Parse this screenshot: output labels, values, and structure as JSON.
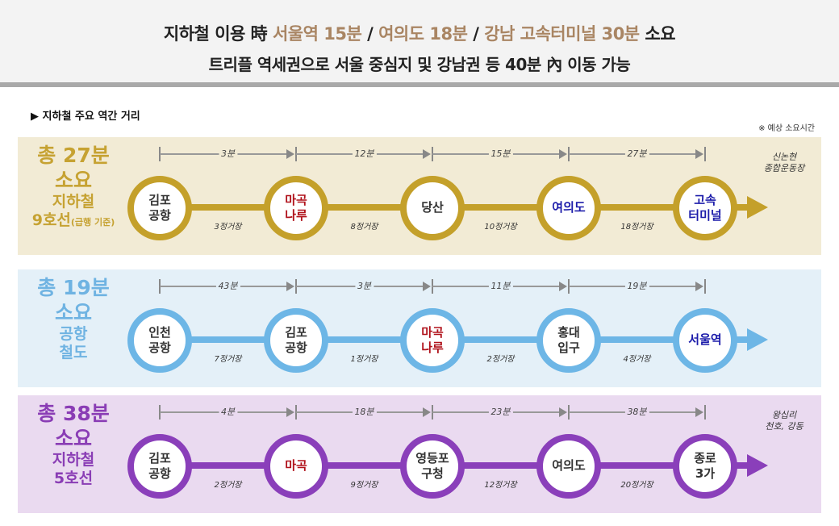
{
  "header": {
    "line1": [
      {
        "t": "지하철 이용 時 ",
        "hl": false
      },
      {
        "t": "서울역 15분",
        "hl": true
      },
      {
        "t": " / ",
        "hl": false
      },
      {
        "t": "여의도 18분",
        "hl": true
      },
      {
        "t": " / ",
        "hl": false
      },
      {
        "t": "강남 고속터미널 30분",
        "hl": true
      },
      {
        "t": " 소요",
        "hl": false
      }
    ],
    "line2": "트리플 역세권으로 서울 중심지 및 강남권 등 40분 內 이동 가능"
  },
  "section_title": "▶ 지하철 주요 역간 거리",
  "note": "※ 예상 소요시간",
  "colors": {
    "text_highlight": "#a98563",
    "station_red": "#b0121b",
    "station_blue": "#1c1caa",
    "station_default": "#333333"
  },
  "lines": [
    {
      "color": "#c4a02a",
      "bg": "#f2ebd5",
      "title_color": "#c6a232",
      "title": [
        "총 27분",
        "소요",
        "지하철",
        "9호선"
      ],
      "title_note": "(급행 기준)",
      "stations": [
        {
          "name": "김포\n공항",
          "c": "default"
        },
        {
          "name": "마곡\n나루",
          "c": "red"
        },
        {
          "name": "당산",
          "c": "default"
        },
        {
          "name": "여의도",
          "c": "blue"
        },
        {
          "name": "고속\n터미널",
          "c": "blue"
        }
      ],
      "times": [
        "3분",
        "12분",
        "15분",
        "27분"
      ],
      "stops": [
        "3정거장",
        "8정거장",
        "10정거장",
        "18정거장"
      ],
      "end_label": "신논현\n종합운동장"
    },
    {
      "color": "#6db6e6",
      "bg": "#e4f0f8",
      "title_color": "#6fb3e2",
      "title": [
        "총 19분",
        "소요",
        "공항",
        "철도"
      ],
      "title_note": "",
      "stations": [
        {
          "name": "인천\n공항",
          "c": "default"
        },
        {
          "name": "김포\n공항",
          "c": "default"
        },
        {
          "name": "마곡\n나루",
          "c": "red"
        },
        {
          "name": "홍대\n입구",
          "c": "default"
        },
        {
          "name": "서울역",
          "c": "blue"
        }
      ],
      "times": [
        "43분",
        "3분",
        "11분",
        "19분"
      ],
      "stops": [
        "7정거장",
        "1정거장",
        "2정거장",
        "4정거장"
      ],
      "end_label": ""
    },
    {
      "color": "#8a3fba",
      "bg": "#eadaf0",
      "title_color": "#8a3db5",
      "title": [
        "총 38분",
        "소요",
        "지하철",
        "5호선"
      ],
      "title_note": "",
      "stations": [
        {
          "name": "김포\n공항",
          "c": "default"
        },
        {
          "name": "마곡",
          "c": "red"
        },
        {
          "name": "영등포\n구청",
          "c": "default"
        },
        {
          "name": "여의도",
          "c": "default"
        },
        {
          "name": "종로\n3가",
          "c": "default"
        }
      ],
      "times": [
        "4분",
        "18분",
        "23분",
        "38분"
      ],
      "stops": [
        "2정거장",
        "9정거장",
        "12정거장",
        "20정거장"
      ],
      "end_label": "왕십리\n천호, 강동"
    }
  ]
}
